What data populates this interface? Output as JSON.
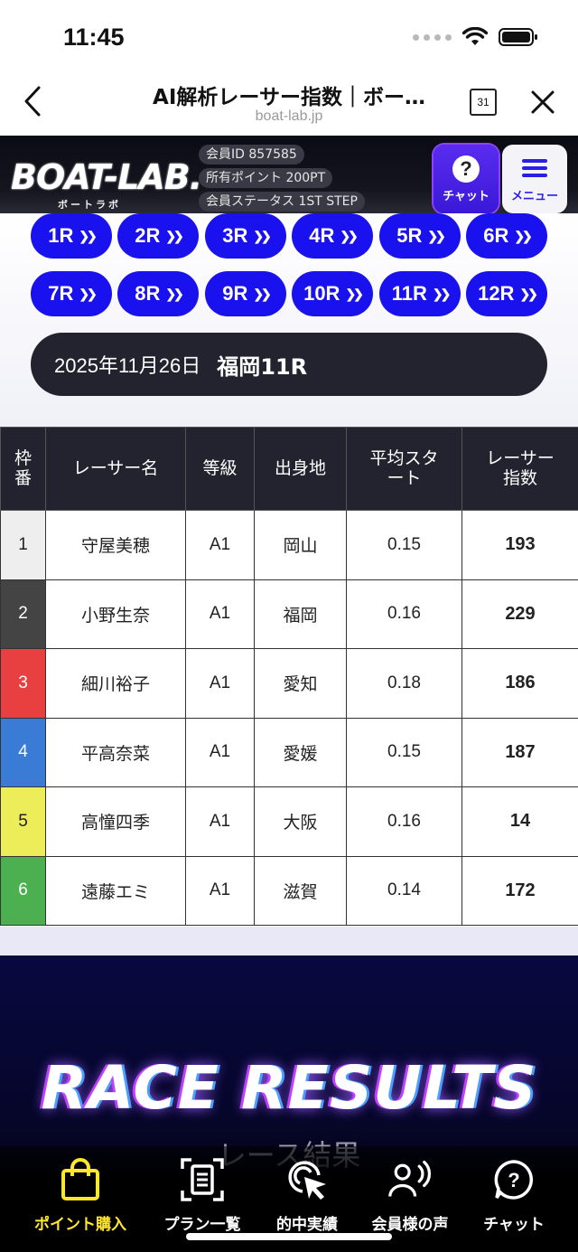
{
  "status": {
    "time": "11:45"
  },
  "browser": {
    "title": "AI解析レーサー指数｜ボー…",
    "url": "boat-lab.jp",
    "calendar_day": "31"
  },
  "site": {
    "logo": "BOAT-LAB.",
    "logo_sub": "ボートラボ",
    "member_id": "会員ID 857585",
    "points": "所有ポイント 200PT",
    "member_status": "会員ステータス 1ST STEP",
    "chat_label": "チャット",
    "menu_label": "メニュー"
  },
  "races": [
    "1R",
    "2R",
    "3R",
    "4R",
    "5R",
    "6R",
    "7R",
    "8R",
    "9R",
    "10R",
    "11R",
    "12R"
  ],
  "selected": {
    "date": "2025年11月26日",
    "venue": "福岡11R"
  },
  "table": {
    "headers": {
      "waku": "枠番",
      "name": "レーサー名",
      "grade": "等級",
      "home": "出身地",
      "start": "平均スタート",
      "index": "レーサー指数"
    },
    "rows": [
      {
        "waku": "1",
        "name": "守屋美穂",
        "grade": "A1",
        "home": "岡山",
        "start": "0.15",
        "index": "193"
      },
      {
        "waku": "2",
        "name": "小野生奈",
        "grade": "A1",
        "home": "福岡",
        "start": "0.16",
        "index": "229"
      },
      {
        "waku": "3",
        "name": "細川裕子",
        "grade": "A1",
        "home": "愛知",
        "start": "0.18",
        "index": "186"
      },
      {
        "waku": "4",
        "name": "平高奈菜",
        "grade": "A1",
        "home": "愛媛",
        "start": "0.15",
        "index": "187"
      },
      {
        "waku": "5",
        "name": "高憧四季",
        "grade": "A1",
        "home": "大阪",
        "start": "0.16",
        "index": "14"
      },
      {
        "waku": "6",
        "name": "遠藤エミ",
        "grade": "A1",
        "home": "滋賀",
        "start": "0.14",
        "index": "172"
      }
    ]
  },
  "waku_colors": [
    "#eeeeee",
    "#444444",
    "#e84040",
    "#3a7bd5",
    "#eded5a",
    "#4cb050"
  ],
  "waku_text_colors": [
    "#222222",
    "#ffffff",
    "#ffffff",
    "#ffffff",
    "#222222",
    "#ffffff"
  ],
  "results": {
    "title": "RACE RESULTS",
    "subtitle": "レース結果"
  },
  "bottom_nav": [
    {
      "label": "ポイント購入",
      "icon": "shopping-bag-icon"
    },
    {
      "label": "プラン一覧",
      "icon": "document-scan-icon"
    },
    {
      "label": "的中実績",
      "icon": "target-cursor-icon"
    },
    {
      "label": "会員様の声",
      "icon": "voice-person-icon"
    },
    {
      "label": "チャット",
      "icon": "help-chat-icon"
    }
  ],
  "colors": {
    "accent_blue": "#1a12ee",
    "active_nav": "#ffe82a",
    "dark": "#232330"
  }
}
